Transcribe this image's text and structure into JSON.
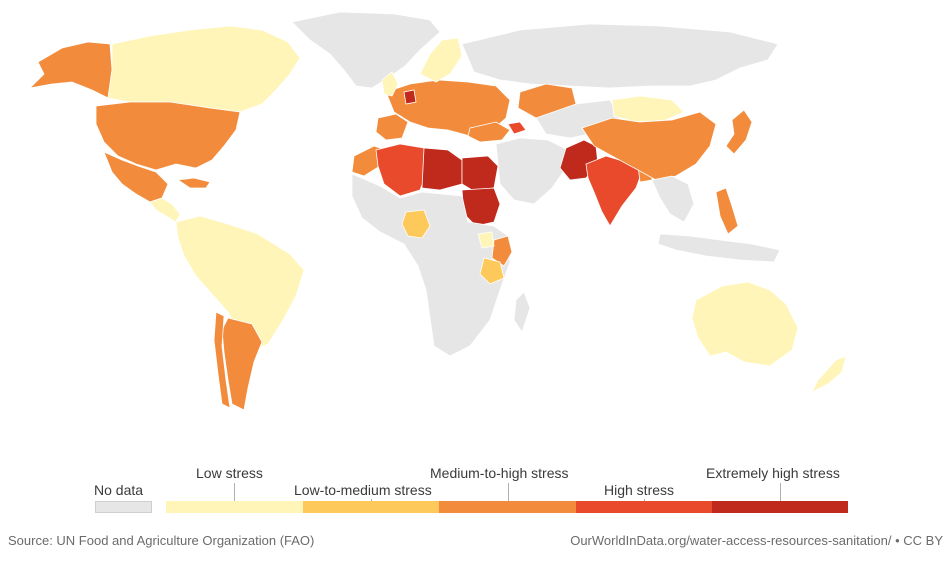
{
  "colors": {
    "no_data": "#e6e6e6",
    "low": "#fff5b8",
    "low_medium": "#fdc95a",
    "medium_high": "#f28c3c",
    "high": "#e94a2c",
    "extreme": "#c02a1c",
    "ocean": "#ffffff",
    "border": "#ffffff"
  },
  "legend": {
    "no_data": "No data",
    "low": "Low stress",
    "low_medium": "Low-to-medium stress",
    "medium_high": "Medium-to-high stress",
    "high": "High stress",
    "extreme": "Extremely high stress"
  },
  "footer": {
    "source": "Source: UN Food and Agriculture Organization (FAO)",
    "url": "OurWorldInData.org/water-access-resources-sanitation/ • CC BY"
  },
  "regions": [
    {
      "id": "greenland",
      "cat": "no_data"
    },
    {
      "id": "alaska",
      "cat": "medium_high"
    },
    {
      "id": "canada",
      "cat": "low"
    },
    {
      "id": "usa",
      "cat": "medium_high"
    },
    {
      "id": "mexico",
      "cat": "medium_high"
    },
    {
      "id": "central-america",
      "cat": "low"
    },
    {
      "id": "cuba",
      "cat": "medium_high"
    },
    {
      "id": "south-america",
      "cat": "low"
    },
    {
      "id": "argentina",
      "cat": "medium_high"
    },
    {
      "id": "chile",
      "cat": "medium_high"
    },
    {
      "id": "europe",
      "cat": "medium_high"
    },
    {
      "id": "scandinavia",
      "cat": "low"
    },
    {
      "id": "uk",
      "cat": "low"
    },
    {
      "id": "iberia",
      "cat": "medium_high"
    },
    {
      "id": "netherlands",
      "cat": "extreme"
    },
    {
      "id": "russia",
      "cat": "no_data"
    },
    {
      "id": "russia-south",
      "cat": "medium_high"
    },
    {
      "id": "kazakhstan",
      "cat": "no_data"
    },
    {
      "id": "turkey",
      "cat": "medium_high"
    },
    {
      "id": "caucasus",
      "cat": "high"
    },
    {
      "id": "north-africa-west",
      "cat": "high"
    },
    {
      "id": "libya",
      "cat": "extreme"
    },
    {
      "id": "egypt",
      "cat": "extreme"
    },
    {
      "id": "morocco",
      "cat": "medium_high"
    },
    {
      "id": "sudan",
      "cat": "extreme"
    },
    {
      "id": "africa",
      "cat": "no_data"
    },
    {
      "id": "nigeria",
      "cat": "low_medium"
    },
    {
      "id": "kenya",
      "cat": "medium_high"
    },
    {
      "id": "tanzania",
      "cat": "low_medium"
    },
    {
      "id": "uganda",
      "cat": "low"
    },
    {
      "id": "middle-east",
      "cat": "no_data"
    },
    {
      "id": "pakistan",
      "cat": "extreme"
    },
    {
      "id": "india",
      "cat": "high"
    },
    {
      "id": "bangladesh",
      "cat": "medium_high"
    },
    {
      "id": "china",
      "cat": "medium_high"
    },
    {
      "id": "mongolia",
      "cat": "low"
    },
    {
      "id": "southeast-asia",
      "cat": "no_data"
    },
    {
      "id": "japan",
      "cat": "medium_high"
    },
    {
      "id": "philippines",
      "cat": "medium_high"
    },
    {
      "id": "indonesia",
      "cat": "no_data"
    },
    {
      "id": "australia",
      "cat": "low"
    },
    {
      "id": "new-zealand",
      "cat": "low"
    },
    {
      "id": "madagascar",
      "cat": "no_data"
    }
  ]
}
